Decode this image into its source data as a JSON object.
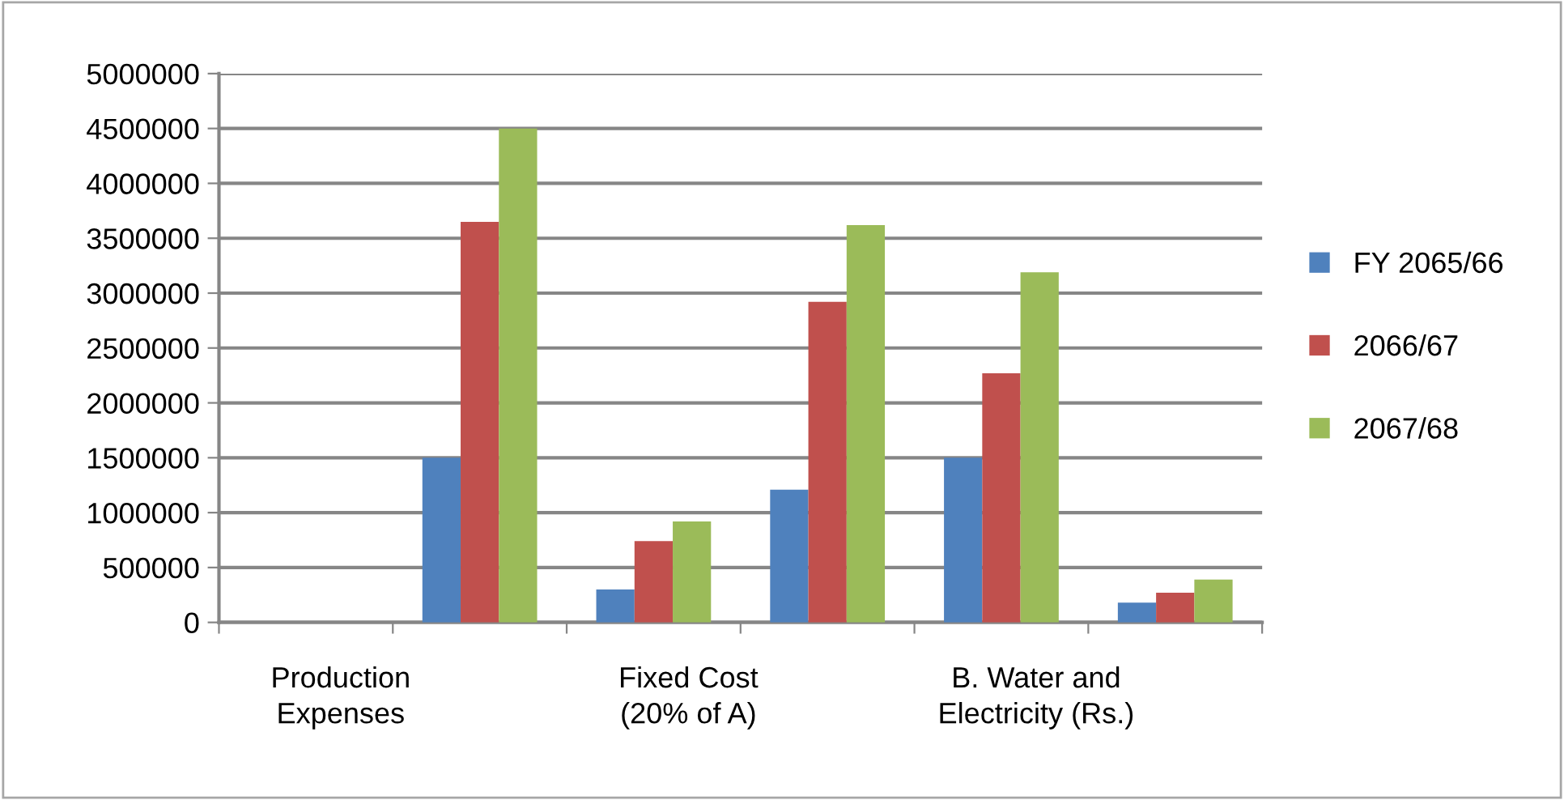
{
  "chart_data": {
    "type": "bar",
    "categories": [
      "Production Expenses",
      null,
      "Fixed Cost (20% of A)",
      null,
      "B. Water and Electricity (Rs.)",
      null
    ],
    "series": [
      {
        "name": "FY 2065/66",
        "color": "#4f81bd",
        "values": [
          null,
          1500000,
          300000,
          1210000,
          1500000,
          180000
        ]
      },
      {
        "name": "2066/67",
        "color": "#c0504d",
        "values": [
          null,
          3650000,
          740000,
          2920000,
          2270000,
          270000
        ]
      },
      {
        "name": "2067/68",
        "color": "#9bbb59",
        "values": [
          null,
          4500000,
          920000,
          3620000,
          3190000,
          390000
        ]
      }
    ],
    "ylim": [
      0,
      5000000
    ],
    "yticks": [
      0,
      500000,
      1000000,
      1500000,
      2000000,
      2500000,
      3000000,
      3500000,
      4000000,
      4500000,
      5000000
    ],
    "grid": "y",
    "legend": "right"
  }
}
